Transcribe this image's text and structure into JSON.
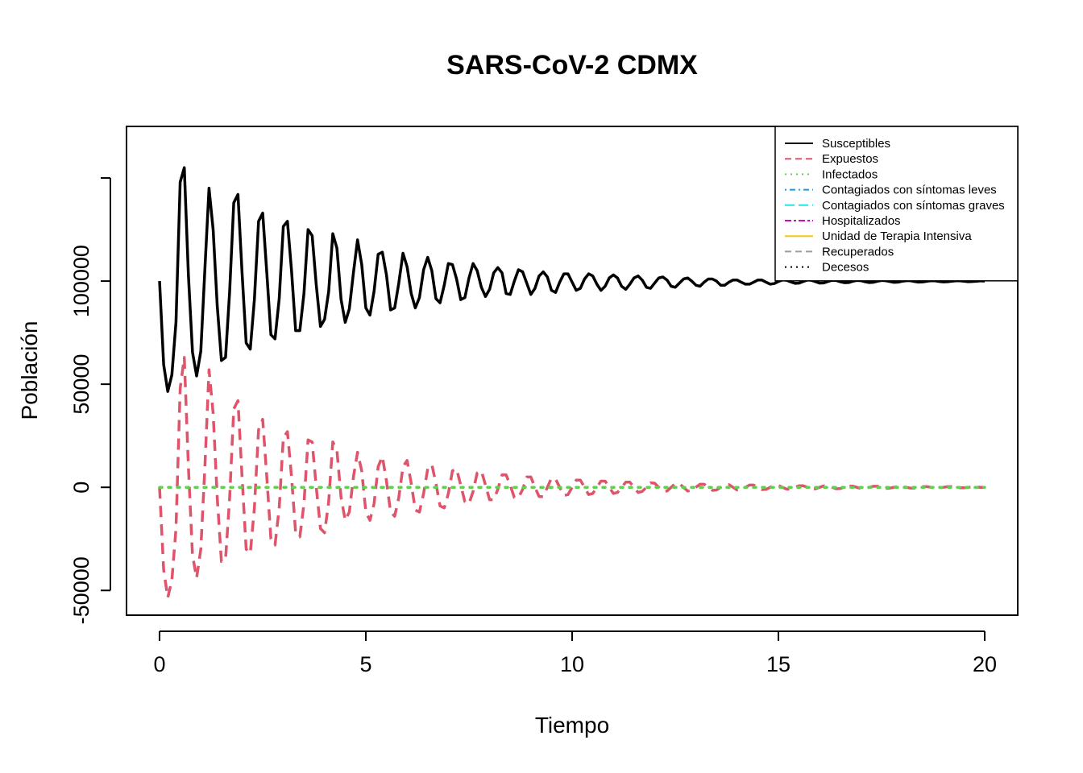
{
  "chart_data": {
    "type": "line",
    "title": "SARS-CoV-2 CDMX",
    "xlabel": "Tiempo",
    "ylabel": "Población",
    "xlim": [
      -0.8,
      20.8
    ],
    "ylim": [
      -62000,
      175000
    ],
    "x_ticks": [
      0,
      5,
      10,
      15,
      20
    ],
    "x_tick_labels": [
      "0",
      "5",
      "10",
      "15",
      "20"
    ],
    "y_ticks": [
      -50000,
      0,
      50000,
      100000
    ],
    "y_tick_labels": [
      "-50000",
      "0",
      "50000",
      "100000"
    ],
    "grid": false,
    "legend_position": "top-right",
    "legend": [
      {
        "name": "Susceptibles",
        "color": "#000000",
        "dash": "solid"
      },
      {
        "name": "Expuestos",
        "color": "#DF536B",
        "dash": "dashed"
      },
      {
        "name": "Infectados",
        "color": "#61D04F",
        "dash": "dotted"
      },
      {
        "name": "Contagiados con síntomas leves",
        "color": "#2297E6",
        "dash": "dotdash"
      },
      {
        "name": "Contagiados con síntomas graves",
        "color": "#28E2E5",
        "dash": "longdash"
      },
      {
        "name": "Hospitalizados",
        "color": "#CD0BBC",
        "dash": "twodash"
      },
      {
        "name": "Unidad de Terapia Intensiva",
        "color": "#F5C710",
        "dash": "solid"
      },
      {
        "name": "Recuperados",
        "color": "#9E9E9E",
        "dash": "dashed"
      },
      {
        "name": "Decesos",
        "color": "#000000",
        "dash": "dotted"
      }
    ],
    "series": [
      {
        "name": "Susceptibles",
        "color": "#000000",
        "dash": "solid",
        "x": [
          0,
          0.1,
          0.2,
          0.3,
          0.4,
          0.5,
          0.6,
          0.7,
          0.8,
          0.9,
          1.0,
          1.1,
          1.2,
          1.3,
          1.4,
          1.5,
          1.6,
          1.7,
          1.8,
          1.9,
          2.0,
          2.1,
          2.2,
          2.3,
          2.4,
          2.5,
          2.6,
          2.7,
          2.8,
          2.9,
          3.0,
          3.1,
          3.2,
          3.3,
          3.4,
          3.5,
          3.6,
          3.7,
          3.8,
          3.9,
          4.0,
          4.1,
          4.2,
          4.3,
          4.4,
          4.5,
          4.6,
          4.7,
          4.8,
          4.9,
          5.0,
          5.1,
          5.2,
          5.3,
          5.4,
          5.5,
          5.6,
          5.7,
          5.8,
          5.9,
          6.0,
          6.1,
          6.2,
          6.3,
          6.4,
          6.5,
          6.6,
          6.7,
          6.8,
          6.9,
          7.0,
          7.1,
          7.2,
          7.3,
          7.4,
          7.5,
          7.6,
          7.7,
          7.8,
          7.9,
          8.0,
          8.1,
          8.2,
          8.3,
          8.4,
          8.5,
          8.6,
          8.7,
          8.8,
          8.9,
          9.0,
          9.1,
          9.2,
          9.3,
          9.4,
          9.5,
          9.6,
          9.7,
          9.8,
          9.9,
          10.0,
          10.1,
          10.2,
          10.3,
          10.4,
          10.5,
          10.6,
          10.7,
          10.8,
          10.9,
          11.0,
          11.1,
          11.2,
          11.3,
          11.4,
          11.5,
          11.6,
          11.7,
          11.8,
          11.9,
          12.0,
          12.1,
          12.2,
          12.3,
          12.4,
          12.5,
          12.6,
          12.7,
          12.8,
          12.9,
          13.0,
          13.1,
          13.2,
          13.3,
          13.4,
          13.5,
          13.6,
          13.7,
          13.8,
          13.9,
          14.0,
          14.1,
          14.2,
          14.3,
          14.4,
          14.5,
          14.6,
          14.7,
          14.8,
          14.9,
          15.0,
          15.1,
          15.2,
          15.3,
          15.4,
          15.5,
          15.6,
          15.7,
          15.8,
          15.9,
          16.0,
          16.1,
          16.2,
          16.3,
          16.4,
          16.5,
          16.6,
          16.7,
          16.8,
          16.9,
          17.0,
          17.1,
          17.2,
          17.3,
          17.4,
          17.5,
          17.6,
          17.7,
          17.8,
          17.9,
          18.0,
          18.1,
          18.2,
          18.3,
          18.4,
          18.5,
          18.6,
          18.7,
          18.8,
          18.9,
          19.0,
          19.1,
          19.2,
          19.3,
          19.4,
          19.5,
          19.6,
          19.7,
          19.8,
          19.9,
          20.0
        ],
        "y": [
          100000,
          59500,
          46500,
          54500,
          80000,
          148000,
          155000,
          103000,
          65500,
          54000,
          66000,
          106000,
          145000,
          125000,
          88000,
          61500,
          63000,
          95000,
          138000,
          142000,
          104000,
          70000,
          67000,
          91000,
          129000,
          133000,
          104000,
          74000,
          72000,
          91500,
          126500,
          129000,
          105000,
          76000,
          76000,
          94000,
          125000,
          122000,
          98000,
          78000,
          81500,
          95000,
          123000,
          116000,
          91000,
          80000,
          86500,
          104000,
          120000,
          108000,
          87000,
          83500,
          95000,
          113000,
          114000,
          103000,
          86000,
          87000,
          99000,
          113500,
          107000,
          94000,
          87000,
          92000,
          105500,
          111500,
          105000,
          91500,
          89500,
          98000,
          108500,
          108000,
          101000,
          91000,
          92000,
          101500,
          108500,
          105000,
          97000,
          92500,
          96000,
          104000,
          106500,
          104000,
          94000,
          93500,
          100000,
          105500,
          104500,
          99000,
          93500,
          96500,
          102500,
          104500,
          102000,
          95500,
          94500,
          99500,
          103500,
          103500,
          99500,
          95500,
          96500,
          101000,
          103500,
          102500,
          98500,
          95500,
          97500,
          101500,
          103000,
          101500,
          97500,
          96000,
          98500,
          101500,
          102500,
          100500,
          97000,
          96500,
          99000,
          101500,
          102000,
          100500,
          97500,
          97000,
          99000,
          101000,
          101500,
          100000,
          98000,
          97500,
          99500,
          101000,
          101000,
          100000,
          98000,
          98000,
          99500,
          100500,
          100500,
          99500,
          98500,
          98500,
          99500,
          100500,
          100500,
          99500,
          98500,
          98800,
          99800,
          100600,
          100400,
          99600,
          98900,
          99000,
          99800,
          100500,
          100400,
          99700,
          99000,
          99100,
          99800,
          100400,
          100300,
          99700,
          99200,
          99300,
          99900,
          100300,
          100200,
          99700,
          99300,
          99400,
          99900,
          100300,
          100200,
          99800,
          99400,
          99500,
          99900,
          100200,
          100200,
          99800,
          99500,
          99600,
          99900,
          100200,
          100100,
          99800,
          99600,
          99700,
          99900,
          100100,
          100100,
          99900,
          99700,
          99800,
          99900,
          100100,
          100000
        ]
      },
      {
        "name": "Expuestos",
        "color": "#DF536B",
        "dash": "dashed",
        "x": [
          0,
          0.1,
          0.2,
          0.3,
          0.4,
          0.5,
          0.6,
          0.7,
          0.8,
          0.9,
          1.0,
          1.1,
          1.2,
          1.3,
          1.4,
          1.5,
          1.6,
          1.7,
          1.8,
          1.9,
          2.0,
          2.1,
          2.2,
          2.3,
          2.4,
          2.5,
          2.6,
          2.7,
          2.8,
          2.9,
          3.0,
          3.1,
          3.2,
          3.3,
          3.4,
          3.5,
          3.6,
          3.7,
          3.8,
          3.9,
          4.0,
          4.1,
          4.2,
          4.3,
          4.4,
          4.5,
          4.6,
          4.7,
          4.8,
          4.9,
          5.0,
          5.1,
          5.2,
          5.3,
          5.4,
          5.5,
          5.6,
          5.7,
          5.8,
          5.9,
          6.0,
          6.1,
          6.2,
          6.3,
          6.4,
          6.5,
          6.6,
          6.7,
          6.8,
          6.9,
          7.0,
          7.1,
          7.2,
          7.3,
          7.4,
          7.5,
          7.6,
          7.7,
          7.8,
          7.9,
          8.0,
          8.1,
          8.2,
          8.3,
          8.4,
          8.5,
          8.6,
          8.7,
          8.8,
          8.9,
          9.0,
          9.1,
          9.2,
          9.3,
          9.4,
          9.5,
          9.6,
          9.7,
          9.8,
          9.9,
          10.0,
          10.1,
          10.2,
          10.3,
          10.4,
          10.5,
          10.6,
          10.7,
          10.8,
          10.9,
          11.0,
          11.1,
          11.2,
          11.3,
          11.4,
          11.5,
          11.6,
          11.7,
          11.8,
          11.9,
          12.0,
          12.1,
          12.2,
          12.3,
          12.4,
          12.5,
          12.6,
          12.7,
          12.8,
          12.9,
          13.0,
          13.1,
          13.2,
          13.3,
          13.4,
          13.5,
          13.6,
          13.7,
          13.8,
          13.9,
          14.0,
          14.1,
          14.2,
          14.3,
          14.4,
          14.5,
          14.6,
          14.7,
          14.8,
          14.9,
          15.0,
          15.1,
          15.2,
          15.3,
          15.4,
          15.5,
          15.6,
          15.7,
          15.8,
          15.9,
          16.0,
          16.1,
          16.2,
          16.3,
          16.4,
          16.5,
          16.6,
          16.7,
          16.8,
          16.9,
          17.0,
          17.1,
          17.2,
          17.3,
          17.4,
          17.5,
          17.6,
          17.7,
          17.8,
          17.9,
          18.0,
          18.1,
          18.2,
          18.3,
          18.4,
          18.5,
          18.6,
          18.7,
          18.8,
          18.9,
          19.0,
          19.1,
          19.2,
          19.3,
          19.4,
          19.5,
          19.6,
          19.7,
          19.8,
          19.9,
          20.0
        ],
        "y": [
          0,
          -40000,
          -53500,
          -45000,
          -20000,
          48000,
          63000,
          10000,
          -33000,
          -44000,
          -30000,
          10000,
          57000,
          36000,
          -5000,
          -36000,
          -35000,
          -5000,
          38000,
          42000,
          5000,
          -30000,
          -32000,
          -10000,
          28000,
          33000,
          5000,
          -25000,
          -28000,
          -10000,
          24000,
          27000,
          5000,
          -22000,
          -24000,
          -8000,
          23000,
          22000,
          0,
          -20000,
          -22000,
          -7000,
          22000,
          18000,
          -5000,
          -16000,
          -12000,
          5000,
          17000,
          8000,
          -12000,
          -16000,
          -8000,
          10000,
          15000,
          3000,
          -12000,
          -14000,
          -5000,
          10000,
          13000,
          2000,
          -11000,
          -12000,
          -3000,
          9000,
          11000,
          2000,
          -9000,
          -10000,
          -3000,
          8000,
          9000,
          1000,
          -7000,
          -8000,
          -2000,
          7000,
          8000,
          1000,
          -6000,
          -6000,
          -1000,
          6000,
          6000,
          1000,
          -5000,
          -5000,
          -1000,
          5000,
          5000,
          0,
          -4500,
          -4500,
          0,
          4500,
          4000,
          0,
          -4000,
          -3500,
          0,
          3500,
          3500,
          0,
          -3500,
          -3000,
          0,
          3000,
          3000,
          0,
          -3000,
          -2500,
          0,
          2500,
          2500,
          0,
          -2500,
          -2000,
          0,
          2200,
          2000,
          0,
          -2000,
          -1800,
          0,
          1800,
          1800,
          0,
          -1800,
          -1500,
          0,
          1500,
          1500,
          0,
          -1500,
          -1300,
          0,
          1300,
          1300,
          0,
          -1300,
          -1100,
          0,
          1100,
          1100,
          0,
          -1100,
          -1000,
          0,
          1000,
          900,
          0,
          -900,
          -800,
          0,
          800,
          800,
          0,
          -800,
          -700,
          0,
          700,
          700,
          0,
          -700,
          -600,
          0,
          600,
          600,
          0,
          -600,
          -500,
          0,
          500,
          500,
          0,
          -500,
          -400,
          0,
          400,
          400,
          0,
          -400,
          -300,
          0,
          300,
          300,
          0,
          -300,
          -300,
          0,
          300,
          300,
          0,
          -200,
          -200,
          0,
          200,
          200,
          0,
          0
        ]
      },
      {
        "name": "Infectados",
        "color": "#61D04F",
        "dash": "dotted",
        "x": [
          0,
          20
        ],
        "y": [
          0,
          0
        ]
      }
    ]
  }
}
